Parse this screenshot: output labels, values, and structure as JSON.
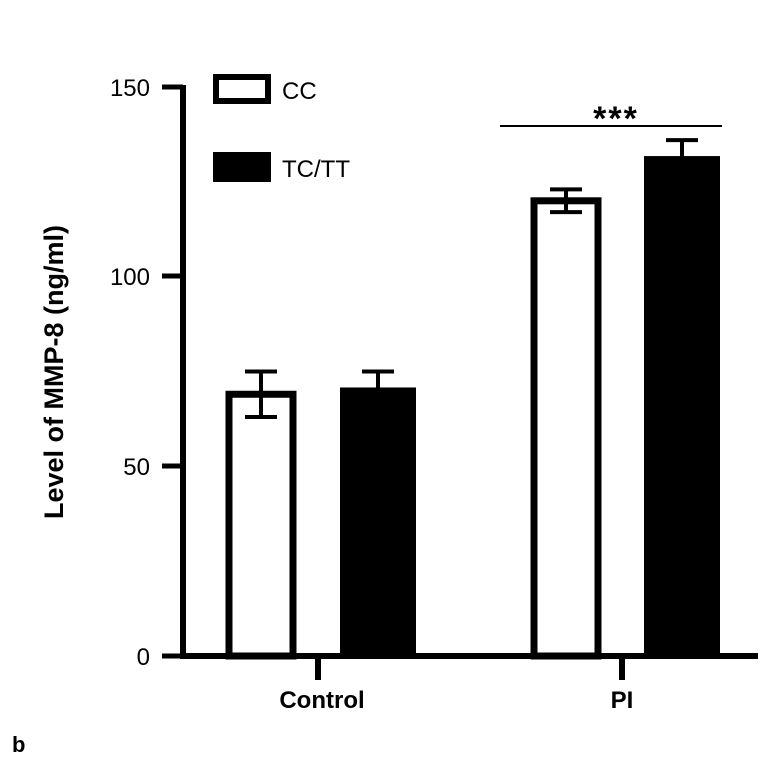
{
  "panel_label": "b",
  "chart_data": {
    "type": "bar",
    "title": "",
    "xlabel": "",
    "ylabel": "Level of MMP-8 (ng/ml)",
    "ylim": [
      0,
      150
    ],
    "yticks": [
      "0",
      "50",
      "100",
      "150"
    ],
    "categories": [
      "Control",
      "PI"
    ],
    "series": [
      {
        "name": "CC",
        "fill": "white",
        "values": [
          69,
          120
        ],
        "error": [
          6,
          3
        ]
      },
      {
        "name": "TC/TT",
        "fill": "black",
        "values": [
          70,
          131
        ],
        "error": [
          5,
          5
        ]
      }
    ],
    "legend_position": "top-left",
    "annotations": [
      {
        "text": "***",
        "between": "PI"
      }
    ],
    "colors": {
      "axis": "#000000",
      "open_bar": "#ffffff",
      "filled_bar": "#000000"
    }
  }
}
